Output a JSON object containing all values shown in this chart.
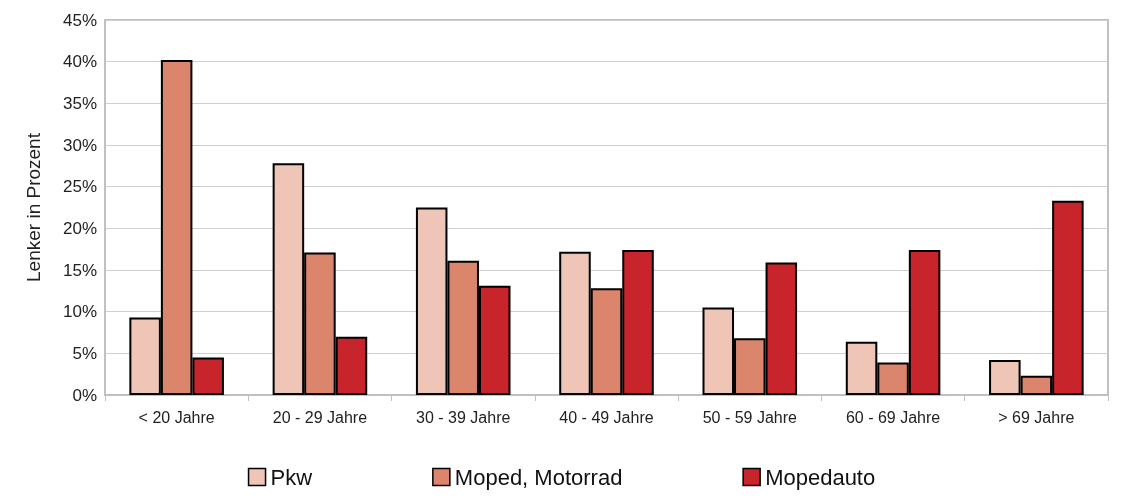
{
  "chart_data": {
    "type": "bar",
    "ylabel": "Lenker in Prozent",
    "categories": [
      "< 20 Jahre",
      "20 - 29 Jahre",
      "30 - 39 Jahre",
      "40 - 49 Jahre",
      "50 - 59 Jahre",
      "60 - 69 Jahre",
      "> 69 Jahre"
    ],
    "series": [
      {
        "name": "Pkw",
        "color": "#eec5b6",
        "values": [
          9.3,
          27.8,
          22.5,
          17.2,
          10.5,
          6.4,
          4.2
        ]
      },
      {
        "name": "Moped, Motorrad",
        "color": "#dc856d",
        "values": [
          40.2,
          17.1,
          16.1,
          12.8,
          6.8,
          3.9,
          2.3
        ]
      },
      {
        "name": "Mopedauto",
        "color": "#c8242b",
        "values": [
          4.5,
          7.0,
          13.1,
          17.4,
          15.9,
          17.4,
          23.3
        ]
      }
    ],
    "ylim": [
      0,
      45
    ],
    "yticks": [
      {
        "value": 0,
        "label": "0%"
      },
      {
        "value": 5,
        "label": "5%"
      },
      {
        "value": 10,
        "label": "10%"
      },
      {
        "value": 15,
        "label": "15%"
      },
      {
        "value": 20,
        "label": "20%"
      },
      {
        "value": 25,
        "label": "25%"
      },
      {
        "value": 30,
        "label": "30%"
      },
      {
        "value": 35,
        "label": "35%"
      },
      {
        "value": 40,
        "label": "40%"
      },
      {
        "value": 45,
        "label": "45%"
      }
    ],
    "grid": "y",
    "legend": "bottom"
  }
}
